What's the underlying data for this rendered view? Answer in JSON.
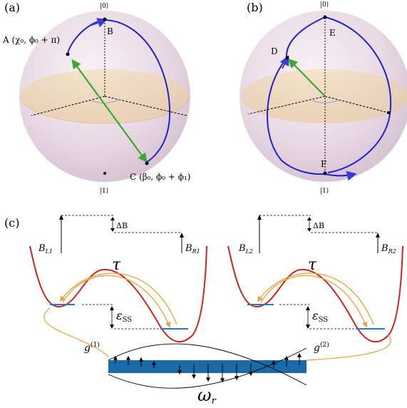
{
  "colors": {
    "trajectory": "#2222cc",
    "vector": "#3aa832",
    "potential": "#d42020",
    "tunnel": "#e8a23a",
    "level": "#2e78b8",
    "resonator": "#1a6aa8"
  },
  "panel_a": {
    "label": "(a)",
    "ket_top": "|0⟩",
    "ket_bottom": "|1⟩",
    "point_a": "A (χ₀, ϕ₀ + π)",
    "point_b": "B",
    "point_c": "C (β₀, ϕ₀ + ϕ₁)"
  },
  "panel_b": {
    "label": "(b)",
    "ket_top": "|0⟩",
    "ket_bottom": "|1⟩",
    "point_d": "D",
    "point_e": "E",
    "point_f": "F"
  },
  "panel_c": {
    "label": "(c)",
    "b_l1": "B",
    "b_l1_sub": "L1",
    "b_r1": "B",
    "b_r1_sub": "R1",
    "b_l2": "B",
    "b_l2_sub": "L2",
    "b_r2": "B",
    "b_r2_sub": "R2",
    "delta_b_left": "ΔB",
    "delta_b_right": "ΔB",
    "tau_left": "τ",
    "tau_right": "τ",
    "eps": "ε",
    "eps_sub": "SS",
    "g1": "g",
    "g1_sup": "(1)",
    "g2": "g",
    "g2_sup": "(2)",
    "omega": "ω",
    "omega_sub": "r"
  }
}
